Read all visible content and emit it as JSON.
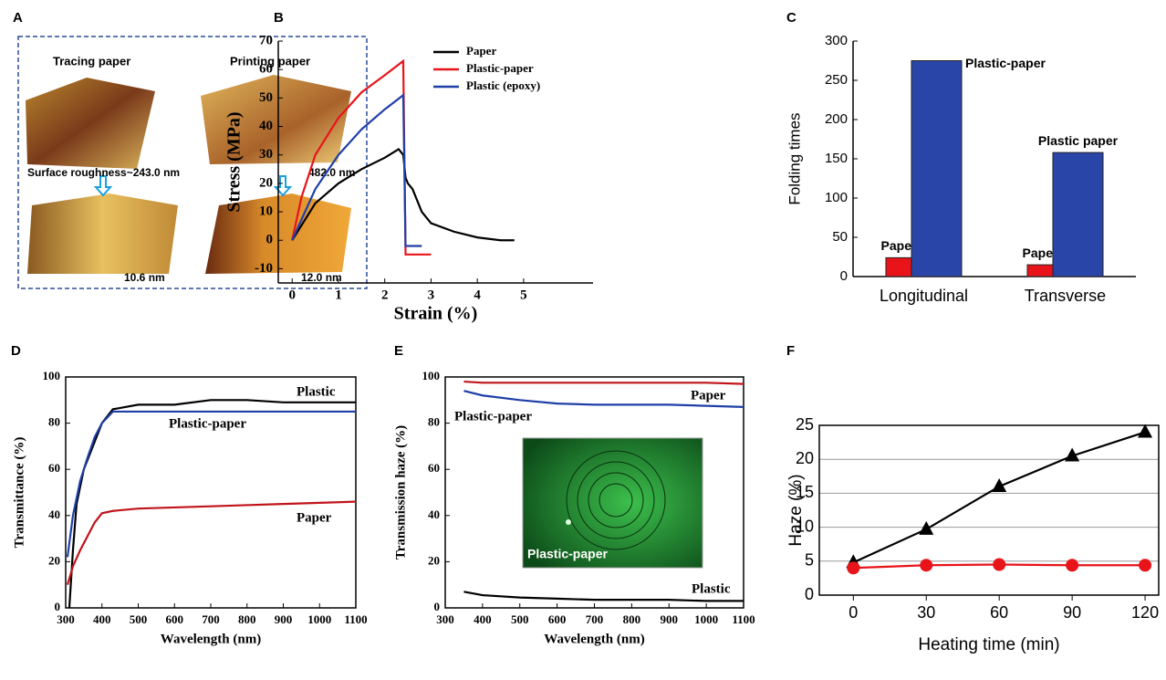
{
  "panel_a": {
    "label": "A",
    "texts": [
      "Tracing paper",
      "Printing paper",
      "Surface roughness~243.0 nm",
      "482.0 nm",
      "10.6 nm",
      "12.0 nm"
    ]
  },
  "chart_data": [
    {
      "type": "line",
      "label": "B",
      "xlabel": "Strain (%)",
      "ylabel": "Stress (MPa)",
      "xlim": [
        -0.3,
        6.5
      ],
      "ylim": [
        -15,
        70
      ],
      "xticks": [
        0,
        1,
        2,
        3,
        4,
        5
      ],
      "yticks": [
        -10,
        0,
        10,
        20,
        30,
        40,
        50,
        60,
        70
      ],
      "legend": "upper right",
      "series": [
        {
          "name": "Paper",
          "color": "#000000",
          "x": [
            0,
            0.5,
            1,
            1.5,
            2,
            2.3,
            2.4,
            2.45,
            2.5,
            2.6,
            2.8,
            3,
            3.5,
            4,
            4.5,
            4.8
          ],
          "values": [
            0,
            13,
            20,
            25,
            29,
            32,
            30,
            22,
            20,
            18,
            10,
            6,
            3,
            1,
            0,
            0
          ]
        },
        {
          "name": "Plastic-paper",
          "color": "#e8141a",
          "x": [
            0,
            0.2,
            0.5,
            1,
            1.5,
            2,
            2.4,
            2.45,
            3
          ],
          "values": [
            0,
            15,
            30,
            43,
            52,
            58,
            63,
            -5,
            -5
          ]
        },
        {
          "name": "Plastic (epoxy)",
          "color": "#1f3fa8",
          "x": [
            0,
            0.5,
            1,
            1.5,
            2,
            2.4,
            2.45,
            2.8
          ],
          "values": [
            0,
            18,
            30,
            39,
            46,
            51,
            -2,
            -2
          ]
        }
      ]
    },
    {
      "type": "bar",
      "label": "C",
      "ylabel": "Folding times",
      "categories": [
        "Longitudinal",
        "Transverse"
      ],
      "ylim": [
        0,
        300
      ],
      "yticks": [
        0,
        50,
        100,
        150,
        200,
        250,
        300
      ],
      "series": [
        {
          "color": "#e8141a",
          "values": [
            24,
            15
          ]
        },
        {
          "color": "#2a45a8",
          "values": [
            275,
            158
          ]
        }
      ],
      "annotations": [
        "Paper",
        "Plastic-paper",
        "Paper",
        "Plastic paper"
      ]
    },
    {
      "type": "line",
      "label": "D",
      "xlabel": "Wavelength (nm)",
      "ylabel": "Transmittance (%)",
      "xlim": [
        300,
        1100
      ],
      "ylim": [
        0,
        100
      ],
      "xticks": [
        300,
        400,
        500,
        600,
        700,
        800,
        900,
        1000,
        1100
      ],
      "yticks": [
        0,
        20,
        40,
        60,
        80,
        100
      ],
      "series": [
        {
          "name": "Plastic",
          "color": "#000000",
          "x": [
            310,
            320,
            330,
            350,
            380,
            400,
            430,
            500,
            600,
            700,
            800,
            900,
            1000,
            1100
          ],
          "values": [
            0,
            25,
            45,
            60,
            72,
            80,
            86,
            88,
            88,
            90,
            90,
            89,
            89,
            89
          ]
        },
        {
          "name": "Plastic-paper",
          "color": "#1f3fa8",
          "x": [
            305,
            320,
            340,
            360,
            380,
            400,
            430,
            500,
            700,
            900,
            1100
          ],
          "values": [
            22,
            40,
            55,
            65,
            74,
            80,
            85,
            85,
            85,
            85,
            85
          ]
        },
        {
          "name": "Paper",
          "color": "#c0141a",
          "x": [
            305,
            320,
            340,
            360,
            380,
            400,
            430,
            500,
            700,
            900,
            1100
          ],
          "values": [
            10,
            18,
            25,
            31,
            37,
            41,
            42,
            43,
            44,
            45,
            46
          ]
        }
      ]
    },
    {
      "type": "line",
      "label": "E",
      "xlabel": "Wavelength (nm)",
      "ylabel": "Transmission haze (%)",
      "xlim": [
        300,
        1100
      ],
      "ylim": [
        0,
        100
      ],
      "xticks": [
        300,
        400,
        500,
        600,
        700,
        800,
        900,
        1000,
        1100
      ],
      "yticks": [
        0,
        20,
        40,
        60,
        80,
        100
      ],
      "inset_label": "Plastic-paper",
      "series": [
        {
          "name": "Paper",
          "color": "#c0141a",
          "x": [
            350,
            400,
            500,
            600,
            700,
            800,
            900,
            1000,
            1100
          ],
          "values": [
            98,
            97.5,
            97.5,
            97.5,
            97.5,
            97.5,
            97.5,
            97.5,
            97
          ]
        },
        {
          "name": "Plastic-paper",
          "color": "#1f3fa8",
          "x": [
            350,
            400,
            500,
            600,
            700,
            800,
            900,
            1000,
            1100
          ],
          "values": [
            94,
            92,
            90,
            88.5,
            88,
            88,
            88,
            87.5,
            87
          ]
        },
        {
          "name": "Plastic",
          "color": "#000000",
          "x": [
            350,
            400,
            500,
            600,
            700,
            800,
            900,
            1000,
            1100
          ],
          "values": [
            7,
            5.5,
            4.5,
            4,
            3.5,
            3.5,
            3.5,
            3,
            3
          ]
        }
      ]
    },
    {
      "type": "line",
      "label": "F",
      "xlabel": "Heating time (min)",
      "ylabel": "Haze (%)",
      "xlim": [
        -14,
        125.6
      ],
      "ylim": [
        0,
        25
      ],
      "xticks": [
        0,
        30,
        60,
        90,
        120
      ],
      "yticks": [
        0,
        5,
        10,
        15,
        20,
        25
      ],
      "grid": true,
      "series": [
        {
          "color": "#000000",
          "marker": "triangle",
          "x": [
            0,
            30,
            60,
            90,
            120
          ],
          "values": [
            4.8,
            9.7,
            16,
            20.5,
            24
          ]
        },
        {
          "color": "#e8141a",
          "marker": "circle",
          "x": [
            0,
            30,
            60,
            90,
            120
          ],
          "values": [
            4,
            4.4,
            4.5,
            4.4,
            4.4
          ]
        }
      ]
    }
  ]
}
